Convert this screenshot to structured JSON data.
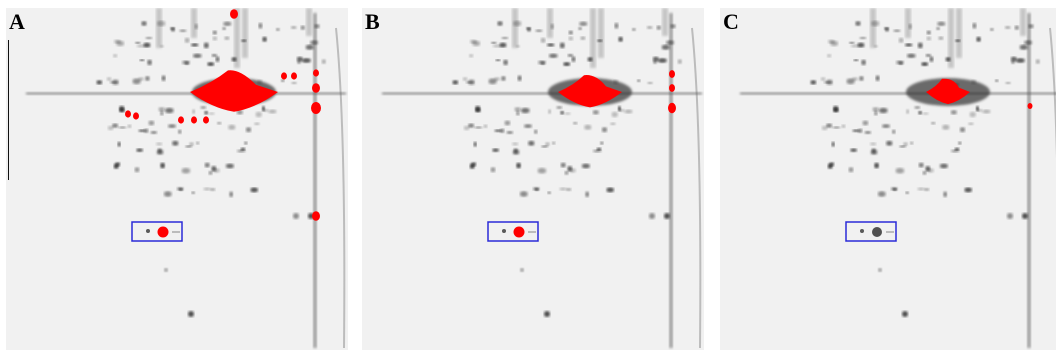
{
  "panels": [
    {
      "label": "A",
      "highlight": "extensive"
    },
    {
      "label": "B",
      "highlight": "moderate"
    },
    {
      "label": "C",
      "highlight": "minimal"
    }
  ],
  "colors": {
    "background": "#ffffff",
    "gel": "#f1f1f1",
    "spot": "#1a1a1a",
    "highlight": "#ff0000",
    "box": "#2a2ad8"
  }
}
